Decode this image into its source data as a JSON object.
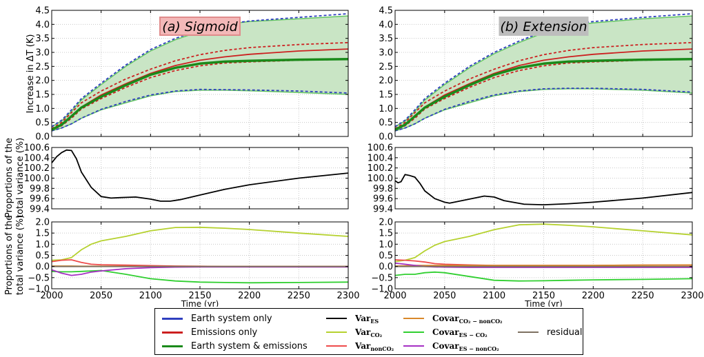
{
  "panels": [
    {
      "id": "a",
      "title": "(a) Sigmoid",
      "title_bg": "#f3b8b8",
      "title_border": "#e08b8b"
    },
    {
      "id": "b",
      "title": "(b) Extension",
      "title_bg": "#bdbdbd",
      "title_border": "#bdbdbd"
    }
  ],
  "colors": {
    "earth_system": "#2f3fbf",
    "emissions": "#cc1f1f",
    "both": "#1a8a1a",
    "envelope_fill": "#c9e5c5",
    "envelope_line": "#62c462",
    "var_es": "#000000",
    "var_co2": "#b5d12e",
    "var_nonco2": "#ee4a4a",
    "covar_co2_nonco2": "#d9882a",
    "covar_es_co2": "#2fcf2f",
    "covar_es_nonco2": "#a52fc4",
    "residual": "#7d7060"
  },
  "axis_labels": {
    "top_ylabel": "Increase in ΔT (K)",
    "mid_ylabel_1": "Proportions of the",
    "mid_ylabel_2": "total variance (%)",
    "bot_ylabel_1": "Proportions of the",
    "bot_ylabel_2": "total variance (%)",
    "xlabel": "Time (yr)"
  },
  "legend": {
    "col1": [
      {
        "label": "Earth system only",
        "color_key": "earth_system"
      },
      {
        "label": "Emissions only",
        "color_key": "emissions"
      },
      {
        "label": "Earth system & emissions",
        "color_key": "both"
      }
    ],
    "col2": [
      {
        "main": "Var",
        "sub": "ES",
        "color_key": "var_es"
      },
      {
        "main": "Var",
        "sub": "CO₂",
        "color_key": "var_co2"
      },
      {
        "main": "Var",
        "sub": "nonCO₂",
        "color_key": "var_nonco2"
      }
    ],
    "col3": [
      {
        "main": "Covar",
        "sub": "CO₂ − nonCO₂",
        "color_key": "covar_co2_nonco2"
      },
      {
        "main": "Covar",
        "sub": "ES − CO₂",
        "color_key": "covar_es_co2"
      },
      {
        "main": "Covar",
        "sub": "ES − nonCO₂",
        "color_key": "covar_es_nonco2"
      }
    ],
    "col4": [
      {
        "label": "residual",
        "color_key": "residual"
      }
    ]
  },
  "chart_data": [
    {
      "type": "line",
      "panel": "a",
      "row": "top",
      "title": "(a) Sigmoid",
      "xlabel": "",
      "ylabel": "Increase in ΔT (K)",
      "xlim": [
        2000,
        2300
      ],
      "ylim": [
        0,
        4.5
      ],
      "xticks": [
        2000,
        2050,
        2100,
        2150,
        2200,
        2250,
        2300
      ],
      "yticks": [
        "0.0",
        "0.5",
        "1.0",
        "1.5",
        "2.0",
        "2.5",
        "3.0",
        "3.5",
        "4.0",
        "4.5"
      ],
      "grid": true,
      "x": [
        2000,
        2010,
        2020,
        2030,
        2050,
        2075,
        2100,
        2125,
        2150,
        2175,
        2200,
        2250,
        2300
      ],
      "series": [
        {
          "role": "envelope_upper",
          "color_key": "envelope_line",
          "values": [
            0.35,
            0.55,
            0.9,
            1.3,
            1.85,
            2.5,
            3.05,
            3.45,
            3.75,
            4.0,
            4.1,
            4.2,
            4.3
          ]
        },
        {
          "role": "envelope_lower",
          "color_key": "envelope_line",
          "values": [
            0.2,
            0.3,
            0.45,
            0.65,
            0.95,
            1.2,
            1.45,
            1.6,
            1.65,
            1.65,
            1.63,
            1.57,
            1.5
          ]
        },
        {
          "role": "es_upper",
          "color_key": "earth_system",
          "dashed": true,
          "values": [
            0.35,
            0.58,
            0.95,
            1.35,
            1.9,
            2.55,
            3.1,
            3.5,
            3.8,
            4.0,
            4.12,
            4.25,
            4.38
          ]
        },
        {
          "role": "es_lower",
          "color_key": "earth_system",
          "dashed": true,
          "values": [
            0.2,
            0.3,
            0.45,
            0.65,
            0.97,
            1.25,
            1.48,
            1.62,
            1.68,
            1.67,
            1.66,
            1.62,
            1.55
          ]
        },
        {
          "role": "em_upper",
          "color_key": "emissions",
          "dashed": true,
          "values": [
            0.28,
            0.5,
            0.85,
            1.2,
            1.62,
            2.05,
            2.4,
            2.7,
            2.92,
            3.07,
            3.17,
            3.28,
            3.35
          ]
        },
        {
          "role": "em_lower",
          "color_key": "emissions",
          "dashed": true,
          "values": [
            0.22,
            0.38,
            0.65,
            0.98,
            1.35,
            1.75,
            2.1,
            2.35,
            2.52,
            2.62,
            2.66,
            2.72,
            2.75
          ]
        },
        {
          "role": "em_mean",
          "color_key": "emissions",
          "values": [
            0.25,
            0.42,
            0.75,
            1.05,
            1.48,
            1.88,
            2.25,
            2.53,
            2.72,
            2.84,
            2.93,
            3.05,
            3.12
          ]
        },
        {
          "role": "es_mean",
          "color_key": "earth_system",
          "values": [
            0.24,
            0.42,
            0.72,
            1.03,
            1.42,
            1.83,
            2.2,
            2.45,
            2.6,
            2.67,
            2.7,
            2.74,
            2.76
          ]
        },
        {
          "role": "both_mean",
          "color_key": "both",
          "values": [
            0.24,
            0.42,
            0.72,
            1.03,
            1.42,
            1.83,
            2.2,
            2.45,
            2.6,
            2.67,
            2.7,
            2.74,
            2.76
          ]
        }
      ]
    },
    {
      "type": "line",
      "panel": "a",
      "row": "middle",
      "xlabel": "",
      "ylabel": "Proportions of the total variance (%)",
      "xlim": [
        2000,
        2300
      ],
      "ylim": [
        99.4,
        100.6
      ],
      "yticks": [
        "99.4",
        "99.6",
        "99.8",
        "100.0",
        "100.2",
        "100.4",
        "100.6"
      ],
      "grid": true,
      "x": [
        2000,
        2005,
        2010,
        2015,
        2020,
        2025,
        2030,
        2040,
        2050,
        2060,
        2070,
        2085,
        2100,
        2110,
        2120,
        2130,
        2150,
        2175,
        2200,
        2250,
        2300
      ],
      "series": [
        {
          "name": "",
          "color_key": "var_es",
          "values": [
            100.3,
            100.42,
            100.5,
            100.55,
            100.54,
            100.38,
            100.12,
            99.82,
            99.64,
            99.61,
            99.62,
            99.63,
            99.59,
            99.55,
            99.55,
            99.58,
            99.67,
            99.78,
            99.87,
            100.0,
            100.1
          ]
        }
      ]
    },
    {
      "type": "line",
      "panel": "a",
      "row": "bottom",
      "xlabel": "Time (yr)",
      "ylabel": "Proportions of the total variance (%)",
      "xlim": [
        2000,
        2300
      ],
      "ylim": [
        -1.0,
        2.0
      ],
      "yticks": [
        "−1.0",
        "−0.5",
        "0.0",
        "0.5",
        "1.0",
        "1.5",
        "2.0"
      ],
      "xticks": [
        2000,
        2050,
        2100,
        2150,
        2200,
        2250,
        2300
      ],
      "grid": true,
      "x": [
        2000,
        2010,
        2020,
        2030,
        2040,
        2050,
        2075,
        2100,
        2125,
        2150,
        2175,
        2200,
        2250,
        2300
      ],
      "series": [
        {
          "color_key": "var_co2",
          "values": [
            0.28,
            0.3,
            0.4,
            0.75,
            1.0,
            1.15,
            1.35,
            1.6,
            1.75,
            1.76,
            1.72,
            1.66,
            1.5,
            1.35
          ]
        },
        {
          "color_key": "var_nonco2",
          "values": [
            0.22,
            0.28,
            0.3,
            0.18,
            0.1,
            0.08,
            0.06,
            0.04,
            0.02,
            0.01,
            0.0,
            0.0,
            0.0,
            0.0
          ]
        },
        {
          "color_key": "covar_co2_nonco2",
          "values": [
            0.02,
            0.02,
            0.02,
            0.01,
            0.01,
            0.01,
            0.01,
            0.0,
            0.0,
            0.0,
            0.0,
            0.0,
            0.0,
            0.0
          ]
        },
        {
          "color_key": "covar_es_co2",
          "values": [
            -0.22,
            -0.24,
            -0.24,
            -0.22,
            -0.2,
            -0.18,
            -0.35,
            -0.55,
            -0.65,
            -0.7,
            -0.72,
            -0.73,
            -0.72,
            -0.7
          ]
        },
        {
          "color_key": "covar_es_nonco2",
          "values": [
            -0.15,
            -0.3,
            -0.4,
            -0.35,
            -0.25,
            -0.2,
            -0.1,
            -0.05,
            -0.03,
            -0.02,
            -0.02,
            -0.02,
            -0.02,
            -0.02
          ]
        },
        {
          "color_key": "residual",
          "values": [
            0.0,
            0.0,
            0.0,
            0.0,
            0.0,
            0.0,
            0.0,
            0.0,
            0.0,
            0.0,
            0.0,
            0.0,
            0.0,
            0.0
          ]
        }
      ]
    },
    {
      "type": "line",
      "panel": "b",
      "row": "top",
      "title": "(b) Extension",
      "xlabel": "",
      "ylabel": "",
      "xlim": [
        2000,
        2300
      ],
      "ylim": [
        0,
        4.5
      ],
      "yticks": [
        "0.0",
        "0.5",
        "1.0",
        "1.5",
        "2.0",
        "2.5",
        "3.0",
        "3.5",
        "4.0",
        "4.5"
      ],
      "grid": true,
      "x": [
        2000,
        2010,
        2020,
        2030,
        2050,
        2075,
        2100,
        2125,
        2150,
        2175,
        2200,
        2250,
        2300
      ],
      "series": [
        {
          "role": "envelope_upper",
          "color_key": "envelope_line",
          "values": [
            0.35,
            0.55,
            0.9,
            1.3,
            1.85,
            2.45,
            2.95,
            3.35,
            3.7,
            3.95,
            4.05,
            4.2,
            4.3
          ]
        },
        {
          "role": "envelope_lower",
          "color_key": "envelope_line",
          "values": [
            0.2,
            0.3,
            0.45,
            0.65,
            0.95,
            1.2,
            1.45,
            1.6,
            1.68,
            1.7,
            1.7,
            1.65,
            1.55
          ]
        },
        {
          "role": "es_upper",
          "color_key": "earth_system",
          "dashed": true,
          "values": [
            0.35,
            0.58,
            0.95,
            1.35,
            1.9,
            2.5,
            3.0,
            3.4,
            3.75,
            4.0,
            4.1,
            4.25,
            4.38
          ]
        },
        {
          "role": "es_lower",
          "color_key": "earth_system",
          "dashed": true,
          "values": [
            0.2,
            0.3,
            0.45,
            0.65,
            0.97,
            1.25,
            1.48,
            1.62,
            1.7,
            1.72,
            1.72,
            1.68,
            1.58
          ]
        },
        {
          "role": "em_upper",
          "color_key": "emissions",
          "dashed": true,
          "values": [
            0.28,
            0.5,
            0.85,
            1.2,
            1.62,
            2.05,
            2.4,
            2.7,
            2.92,
            3.07,
            3.17,
            3.28,
            3.35
          ]
        },
        {
          "role": "em_lower",
          "color_key": "emissions",
          "dashed": true,
          "values": [
            0.22,
            0.38,
            0.65,
            0.98,
            1.35,
            1.75,
            2.1,
            2.35,
            2.52,
            2.62,
            2.66,
            2.72,
            2.75
          ]
        },
        {
          "role": "em_mean",
          "color_key": "emissions",
          "values": [
            0.25,
            0.42,
            0.75,
            1.05,
            1.48,
            1.88,
            2.25,
            2.53,
            2.72,
            2.84,
            2.93,
            3.05,
            3.12
          ]
        },
        {
          "role": "es_mean",
          "color_key": "earth_system",
          "values": [
            0.24,
            0.42,
            0.72,
            1.03,
            1.42,
            1.83,
            2.2,
            2.45,
            2.6,
            2.67,
            2.7,
            2.74,
            2.76
          ]
        },
        {
          "role": "both_mean",
          "color_key": "both",
          "values": [
            0.24,
            0.42,
            0.72,
            1.03,
            1.42,
            1.83,
            2.2,
            2.45,
            2.6,
            2.67,
            2.7,
            2.74,
            2.76
          ]
        }
      ]
    },
    {
      "type": "line",
      "panel": "b",
      "row": "middle",
      "xlabel": "",
      "ylabel": "",
      "xlim": [
        2000,
        2300
      ],
      "ylim": [
        99.4,
        100.6
      ],
      "yticks": [
        "99.4",
        "99.6",
        "99.8",
        "100.0",
        "100.2",
        "100.4",
        "100.6"
      ],
      "grid": true,
      "x": [
        2000,
        2003,
        2006,
        2010,
        2015,
        2020,
        2025,
        2030,
        2040,
        2050,
        2055,
        2070,
        2090,
        2100,
        2110,
        2130,
        2150,
        2175,
        2200,
        2250,
        2300
      ],
      "series": [
        {
          "name": "",
          "color_key": "var_es",
          "values": [
            99.95,
            99.91,
            99.93,
            100.07,
            100.05,
            100.02,
            99.9,
            99.75,
            99.6,
            99.53,
            99.51,
            99.57,
            99.65,
            99.63,
            99.56,
            99.49,
            99.48,
            99.5,
            99.53,
            99.61,
            99.72
          ]
        }
      ]
    },
    {
      "type": "line",
      "panel": "b",
      "row": "bottom",
      "xlabel": "Time (yr)",
      "ylabel": "",
      "xlim": [
        2000,
        2300
      ],
      "ylim": [
        -1.0,
        2.0
      ],
      "yticks": [
        "−1.0",
        "−0.5",
        "0.0",
        "0.5",
        "1.0",
        "1.5",
        "2.0"
      ],
      "xticks": [
        2000,
        2050,
        2100,
        2150,
        2200,
        2250,
        2300
      ],
      "grid": true,
      "x": [
        2000,
        2010,
        2020,
        2030,
        2040,
        2050,
        2075,
        2100,
        2125,
        2150,
        2175,
        2200,
        2250,
        2300
      ],
      "series": [
        {
          "color_key": "var_co2",
          "values": [
            0.22,
            0.28,
            0.4,
            0.7,
            0.95,
            1.12,
            1.35,
            1.65,
            1.87,
            1.9,
            1.85,
            1.78,
            1.6,
            1.42
          ]
        },
        {
          "color_key": "var_nonco2",
          "values": [
            0.3,
            0.28,
            0.25,
            0.2,
            0.13,
            0.1,
            0.07,
            0.05,
            0.05,
            0.05,
            0.05,
            0.05,
            0.06,
            0.06
          ]
        },
        {
          "color_key": "covar_co2_nonco2",
          "values": [
            0.02,
            0.03,
            0.05,
            0.05,
            0.05,
            0.05,
            0.05,
            0.05,
            0.05,
            0.05,
            0.05,
            0.05,
            0.06,
            0.07
          ]
        },
        {
          "color_key": "covar_es_co2",
          "values": [
            -0.4,
            -0.35,
            -0.35,
            -0.28,
            -0.25,
            -0.28,
            -0.45,
            -0.62,
            -0.65,
            -0.64,
            -0.62,
            -0.6,
            -0.58,
            -0.55
          ]
        },
        {
          "color_key": "covar_es_nonco2",
          "values": [
            0.15,
            0.1,
            0.05,
            0.0,
            -0.02,
            -0.03,
            -0.04,
            -0.04,
            -0.04,
            -0.04,
            -0.04,
            -0.04,
            -0.04,
            -0.04
          ]
        },
        {
          "color_key": "residual",
          "values": [
            0.0,
            0.0,
            0.0,
            0.0,
            0.0,
            0.0,
            0.0,
            0.0,
            0.0,
            0.0,
            0.0,
            0.0,
            0.0,
            0.0
          ]
        }
      ]
    }
  ]
}
